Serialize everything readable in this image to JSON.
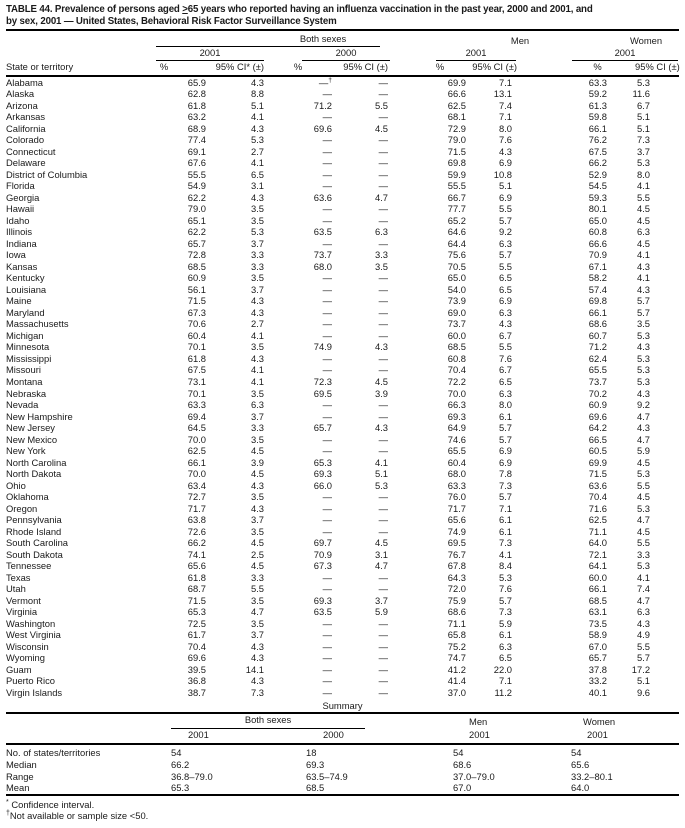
{
  "title": {
    "line1_pre": "TABLE 44. Prevalence of persons aged ",
    "gte": ">",
    "line1_post": "65 years who reported having an influenza vaccination in the past year, 2000 and 2001, and",
    "line2": "by sex, 2001 — United States, Behavioral Risk Factor Surveillance System"
  },
  "table": {
    "state_col": "State or territory",
    "groups": {
      "both": "Both sexes",
      "men": "Men",
      "women": "Women"
    },
    "years": {
      "bs2001": "2001",
      "bs2000": "2000",
      "men2001": "2001",
      "women2001": "2001"
    },
    "pct_label": "%",
    "ci_star_label": "95% CI* (±)",
    "ci_label": "95% CI (±)",
    "rows": [
      {
        "state": "Alabama",
        "values": [
          "65.9",
          "4.3",
          "—†",
          "—",
          "69.9",
          "7.1",
          "63.3",
          "5.3"
        ]
      },
      {
        "state": "Alaska",
        "values": [
          "62.8",
          "8.8",
          "—",
          "—",
          "66.6",
          "13.1",
          "59.2",
          "11.6"
        ]
      },
      {
        "state": "Arizona",
        "values": [
          "61.8",
          "5.1",
          "71.2",
          "5.5",
          "62.5",
          "7.4",
          "61.3",
          "6.7"
        ]
      },
      {
        "state": "Arkansas",
        "values": [
          "63.2",
          "4.1",
          "—",
          "—",
          "68.1",
          "7.1",
          "59.8",
          "5.1"
        ]
      },
      {
        "state": "California",
        "values": [
          "68.9",
          "4.3",
          "69.6",
          "4.5",
          "72.9",
          "8.0",
          "66.1",
          "5.1"
        ]
      },
      {
        "state": "Colorado",
        "values": [
          "77.4",
          "5.3",
          "—",
          "—",
          "79.0",
          "7.6",
          "76.2",
          "7.3"
        ]
      },
      {
        "state": "Connecticut",
        "values": [
          "69.1",
          "2.7",
          "—",
          "—",
          "71.5",
          "4.3",
          "67.5",
          "3.7"
        ]
      },
      {
        "state": "Delaware",
        "values": [
          "67.6",
          "4.1",
          "—",
          "—",
          "69.8",
          "6.9",
          "66.2",
          "5.3"
        ]
      },
      {
        "state": "District of Columbia",
        "values": [
          "55.5",
          "6.5",
          "—",
          "—",
          "59.9",
          "10.8",
          "52.9",
          "8.0"
        ]
      },
      {
        "state": "Florida",
        "values": [
          "54.9",
          "3.1",
          "—",
          "—",
          "55.5",
          "5.1",
          "54.5",
          "4.1"
        ]
      },
      {
        "state": "Georgia",
        "values": [
          "62.2",
          "4.3",
          "63.6",
          "4.7",
          "66.7",
          "6.9",
          "59.3",
          "5.5"
        ]
      },
      {
        "state": "Hawaii",
        "values": [
          "79.0",
          "3.5",
          "—",
          "—",
          "77.7",
          "5.5",
          "80.1",
          "4.5"
        ]
      },
      {
        "state": "Idaho",
        "values": [
          "65.1",
          "3.5",
          "—",
          "—",
          "65.2",
          "5.7",
          "65.0",
          "4.5"
        ]
      },
      {
        "state": "Illinois",
        "values": [
          "62.2",
          "5.3",
          "63.5",
          "6.3",
          "64.6",
          "9.2",
          "60.8",
          "6.3"
        ]
      },
      {
        "state": "Indiana",
        "values": [
          "65.7",
          "3.7",
          "—",
          "—",
          "64.4",
          "6.3",
          "66.6",
          "4.5"
        ]
      },
      {
        "state": "Iowa",
        "values": [
          "72.8",
          "3.3",
          "73.7",
          "3.3",
          "75.6",
          "5.7",
          "70.9",
          "4.1"
        ]
      },
      {
        "state": "Kansas",
        "values": [
          "68.5",
          "3.3",
          "68.0",
          "3.5",
          "70.5",
          "5.5",
          "67.1",
          "4.3"
        ]
      },
      {
        "state": "Kentucky",
        "values": [
          "60.9",
          "3.5",
          "—",
          "—",
          "65.0",
          "6.5",
          "58.2",
          "4.1"
        ]
      },
      {
        "state": "Louisiana",
        "values": [
          "56.1",
          "3.7",
          "—",
          "—",
          "54.0",
          "6.5",
          "57.4",
          "4.3"
        ]
      },
      {
        "state": "Maine",
        "values": [
          "71.5",
          "4.3",
          "—",
          "—",
          "73.9",
          "6.9",
          "69.8",
          "5.7"
        ]
      },
      {
        "state": "Maryland",
        "values": [
          "67.3",
          "4.3",
          "—",
          "—",
          "69.0",
          "6.3",
          "66.1",
          "5.7"
        ]
      },
      {
        "state": "Massachusetts",
        "values": [
          "70.6",
          "2.7",
          "—",
          "—",
          "73.7",
          "4.3",
          "68.6",
          "3.5"
        ]
      },
      {
        "state": "Michigan",
        "values": [
          "60.4",
          "4.1",
          "—",
          "—",
          "60.0",
          "6.7",
          "60.7",
          "5.3"
        ]
      },
      {
        "state": "Minnesota",
        "values": [
          "70.1",
          "3.5",
          "74.9",
          "4.3",
          "68.5",
          "5.5",
          "71.2",
          "4.3"
        ]
      },
      {
        "state": "Mississippi",
        "values": [
          "61.8",
          "4.3",
          "—",
          "—",
          "60.8",
          "7.6",
          "62.4",
          "5.3"
        ]
      },
      {
        "state": "Missouri",
        "values": [
          "67.5",
          "4.1",
          "—",
          "—",
          "70.4",
          "6.7",
          "65.5",
          "5.3"
        ]
      },
      {
        "state": "Montana",
        "values": [
          "73.1",
          "4.1",
          "72.3",
          "4.5",
          "72.2",
          "6.5",
          "73.7",
          "5.3"
        ]
      },
      {
        "state": "Nebraska",
        "values": [
          "70.1",
          "3.5",
          "69.5",
          "3.9",
          "70.0",
          "6.3",
          "70.2",
          "4.3"
        ]
      },
      {
        "state": "Nevada",
        "values": [
          "63.3",
          "6.3",
          "—",
          "—",
          "66.3",
          "8.0",
          "60.9",
          "9.2"
        ]
      },
      {
        "state": "New Hampshire",
        "values": [
          "69.4",
          "3.7",
          "—",
          "—",
          "69.3",
          "6.1",
          "69.6",
          "4.7"
        ]
      },
      {
        "state": "New Jersey",
        "values": [
          "64.5",
          "3.3",
          "65.7",
          "4.3",
          "64.9",
          "5.7",
          "64.2",
          "4.3"
        ]
      },
      {
        "state": "New Mexico",
        "values": [
          "70.0",
          "3.5",
          "—",
          "—",
          "74.6",
          "5.7",
          "66.5",
          "4.7"
        ]
      },
      {
        "state": "New York",
        "values": [
          "62.5",
          "4.5",
          "—",
          "—",
          "65.5",
          "6.9",
          "60.5",
          "5.9"
        ]
      },
      {
        "state": "North Carolina",
        "values": [
          "66.1",
          "3.9",
          "65.3",
          "4.1",
          "60.4",
          "6.9",
          "69.9",
          "4.5"
        ]
      },
      {
        "state": "North Dakota",
        "values": [
          "70.0",
          "4.5",
          "69.3",
          "5.1",
          "68.0",
          "7.8",
          "71.5",
          "5.3"
        ]
      },
      {
        "state": "Ohio",
        "values": [
          "63.4",
          "4.3",
          "66.0",
          "5.3",
          "63.3",
          "7.3",
          "63.6",
          "5.5"
        ]
      },
      {
        "state": "Oklahoma",
        "values": [
          "72.7",
          "3.5",
          "—",
          "—",
          "76.0",
          "5.7",
          "70.4",
          "4.5"
        ]
      },
      {
        "state": "Oregon",
        "values": [
          "71.7",
          "4.3",
          "—",
          "—",
          "71.7",
          "7.1",
          "71.6",
          "5.3"
        ]
      },
      {
        "state": "Pennsylvania",
        "values": [
          "63.8",
          "3.7",
          "—",
          "—",
          "65.6",
          "6.1",
          "62.5",
          "4.7"
        ]
      },
      {
        "state": "Rhode Island",
        "values": [
          "72.6",
          "3.5",
          "—",
          "—",
          "74.9",
          "6.1",
          "71.1",
          "4.5"
        ]
      },
      {
        "state": "South Carolina",
        "values": [
          "66.2",
          "4.5",
          "69.7",
          "4.5",
          "69.5",
          "7.3",
          "64.0",
          "5.5"
        ]
      },
      {
        "state": "South Dakota",
        "values": [
          "74.1",
          "2.5",
          "70.9",
          "3.1",
          "76.7",
          "4.1",
          "72.1",
          "3.3"
        ]
      },
      {
        "state": "Tennessee",
        "values": [
          "65.6",
          "4.5",
          "67.3",
          "4.7",
          "67.8",
          "8.4",
          "64.1",
          "5.3"
        ]
      },
      {
        "state": "Texas",
        "values": [
          "61.8",
          "3.3",
          "—",
          "—",
          "64.3",
          "5.3",
          "60.0",
          "4.1"
        ]
      },
      {
        "state": "Utah",
        "values": [
          "68.7",
          "5.5",
          "—",
          "—",
          "72.0",
          "7.6",
          "66.1",
          "7.4"
        ]
      },
      {
        "state": "Vermont",
        "values": [
          "71.5",
          "3.5",
          "69.3",
          "3.7",
          "75.9",
          "5.7",
          "68.5",
          "4.7"
        ]
      },
      {
        "state": "Virginia",
        "values": [
          "65.3",
          "4.7",
          "63.5",
          "5.9",
          "68.6",
          "7.3",
          "63.1",
          "6.3"
        ]
      },
      {
        "state": "Washington",
        "values": [
          "72.5",
          "3.5",
          "—",
          "—",
          "71.1",
          "5.9",
          "73.5",
          "4.3"
        ]
      },
      {
        "state": "West Virginia",
        "values": [
          "61.7",
          "3.7",
          "—",
          "—",
          "65.8",
          "6.1",
          "58.9",
          "4.9"
        ]
      },
      {
        "state": "Wisconsin",
        "values": [
          "70.4",
          "4.3",
          "—",
          "—",
          "75.2",
          "6.3",
          "67.0",
          "5.5"
        ]
      },
      {
        "state": "Wyoming",
        "values": [
          "69.6",
          "4.3",
          "—",
          "—",
          "74.7",
          "6.5",
          "65.7",
          "5.7"
        ]
      },
      {
        "state": "Guam",
        "values": [
          "39.5",
          "14.1",
          "—",
          "—",
          "41.2",
          "22.0",
          "37.8",
          "17.2"
        ]
      },
      {
        "state": "Puerto Rico",
        "values": [
          "36.8",
          "4.3",
          "—",
          "—",
          "41.4",
          "7.1",
          "33.2",
          "5.1"
        ]
      },
      {
        "state": "Virgin Islands",
        "values": [
          "38.7",
          "7.3",
          "—",
          "—",
          "37.0",
          "11.2",
          "40.1",
          "9.6"
        ]
      }
    ]
  },
  "summary": {
    "title": "Summary",
    "rows": [
      {
        "label": "No. of states/territories",
        "values": [
          "54",
          "18",
          "54",
          "54"
        ]
      },
      {
        "label": "Median",
        "values": [
          "66.2",
          "69.3",
          "68.6",
          "65.6"
        ]
      },
      {
        "label": "Range",
        "values": [
          "36.8–79.0",
          "63.5–74.9",
          "37.0–79.0",
          "33.2–80.1"
        ]
      },
      {
        "label": "Mean",
        "values": [
          "65.3",
          "68.5",
          "67.0",
          "64.0"
        ]
      }
    ]
  },
  "footnotes": [
    {
      "marker": "*",
      "text": " Confidence interval."
    },
    {
      "marker": "†",
      "text": "Not available or sample size <50."
    }
  ]
}
